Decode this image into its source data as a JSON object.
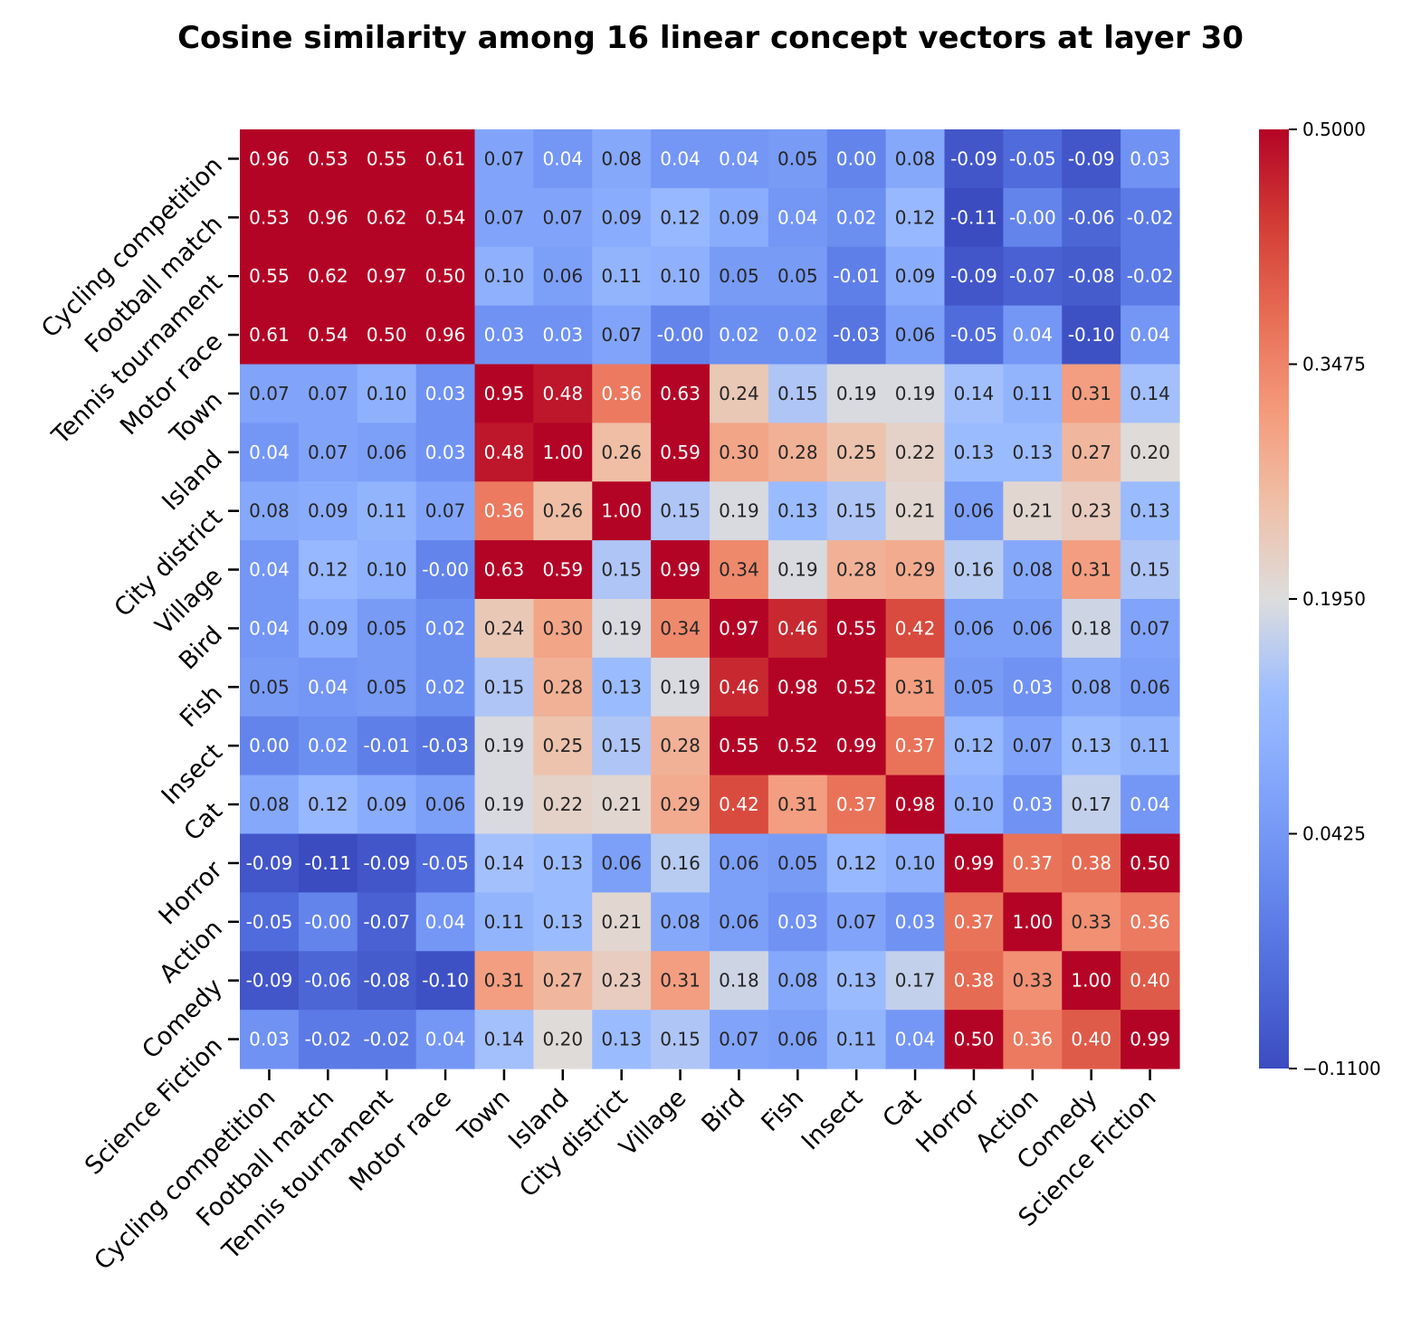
{
  "chart_data": {
    "type": "heatmap",
    "title": "Cosine similarity among 16 linear concept vectors at layer 30",
    "labels": [
      "Cycling competition",
      "Football match",
      "Tennis tournament",
      "Motor race",
      "Town",
      "Island",
      "City district",
      "Village",
      "Bird",
      "Fish",
      "Insect",
      "Cat",
      "Horror",
      "Action",
      "Comedy",
      "Science Fiction"
    ],
    "matrix": [
      [
        "0.96",
        "0.53",
        "0.55",
        "0.61",
        "0.07",
        "0.04",
        "0.08",
        "0.04",
        "0.04",
        "0.05",
        "0.00",
        "0.08",
        "-0.09",
        "-0.05",
        "-0.09",
        "0.03"
      ],
      [
        "0.53",
        "0.96",
        "0.62",
        "0.54",
        "0.07",
        "0.07",
        "0.09",
        "0.12",
        "0.09",
        "0.04",
        "0.02",
        "0.12",
        "-0.11",
        "-0.00",
        "-0.06",
        "-0.02"
      ],
      [
        "0.55",
        "0.62",
        "0.97",
        "0.50",
        "0.10",
        "0.06",
        "0.11",
        "0.10",
        "0.05",
        "0.05",
        "-0.01",
        "0.09",
        "-0.09",
        "-0.07",
        "-0.08",
        "-0.02"
      ],
      [
        "0.61",
        "0.54",
        "0.50",
        "0.96",
        "0.03",
        "0.03",
        "0.07",
        "-0.00",
        "0.02",
        "0.02",
        "-0.03",
        "0.06",
        "-0.05",
        "0.04",
        "-0.10",
        "0.04"
      ],
      [
        "0.07",
        "0.07",
        "0.10",
        "0.03",
        "0.95",
        "0.48",
        "0.36",
        "0.63",
        "0.24",
        "0.15",
        "0.19",
        "0.19",
        "0.14",
        "0.11",
        "0.31",
        "0.14"
      ],
      [
        "0.04",
        "0.07",
        "0.06",
        "0.03",
        "0.48",
        "1.00",
        "0.26",
        "0.59",
        "0.30",
        "0.28",
        "0.25",
        "0.22",
        "0.13",
        "0.13",
        "0.27",
        "0.20"
      ],
      [
        "0.08",
        "0.09",
        "0.11",
        "0.07",
        "0.36",
        "0.26",
        "1.00",
        "0.15",
        "0.19",
        "0.13",
        "0.15",
        "0.21",
        "0.06",
        "0.21",
        "0.23",
        "0.13"
      ],
      [
        "0.04",
        "0.12",
        "0.10",
        "-0.00",
        "0.63",
        "0.59",
        "0.15",
        "0.99",
        "0.34",
        "0.19",
        "0.28",
        "0.29",
        "0.16",
        "0.08",
        "0.31",
        "0.15"
      ],
      [
        "0.04",
        "0.09",
        "0.05",
        "0.02",
        "0.24",
        "0.30",
        "0.19",
        "0.34",
        "0.97",
        "0.46",
        "0.55",
        "0.42",
        "0.06",
        "0.06",
        "0.18",
        "0.07"
      ],
      [
        "0.05",
        "0.04",
        "0.05",
        "0.02",
        "0.15",
        "0.28",
        "0.13",
        "0.19",
        "0.46",
        "0.98",
        "0.52",
        "0.31",
        "0.05",
        "0.03",
        "0.08",
        "0.06"
      ],
      [
        "0.00",
        "0.02",
        "-0.01",
        "-0.03",
        "0.19",
        "0.25",
        "0.15",
        "0.28",
        "0.55",
        "0.52",
        "0.99",
        "0.37",
        "0.12",
        "0.07",
        "0.13",
        "0.11"
      ],
      [
        "0.08",
        "0.12",
        "0.09",
        "0.06",
        "0.19",
        "0.22",
        "0.21",
        "0.29",
        "0.42",
        "0.31",
        "0.37",
        "0.98",
        "0.10",
        "0.03",
        "0.17",
        "0.04"
      ],
      [
        "-0.09",
        "-0.11",
        "-0.09",
        "-0.05",
        "0.14",
        "0.13",
        "0.06",
        "0.16",
        "0.06",
        "0.05",
        "0.12",
        "0.10",
        "0.99",
        "0.37",
        "0.38",
        "0.50"
      ],
      [
        "-0.05",
        "-0.00",
        "-0.07",
        "0.04",
        "0.11",
        "0.13",
        "0.21",
        "0.08",
        "0.06",
        "0.03",
        "0.07",
        "0.03",
        "0.37",
        "1.00",
        "0.33",
        "0.36"
      ],
      [
        "-0.09",
        "-0.06",
        "-0.08",
        "-0.10",
        "0.31",
        "0.27",
        "0.23",
        "0.31",
        "0.18",
        "0.08",
        "0.13",
        "0.17",
        "0.38",
        "0.33",
        "1.00",
        "0.40"
      ],
      [
        "0.03",
        "-0.02",
        "-0.02",
        "0.04",
        "0.14",
        "0.20",
        "0.13",
        "0.15",
        "0.07",
        "0.06",
        "0.11",
        "0.04",
        "0.50",
        "0.36",
        "0.40",
        "0.99"
      ]
    ],
    "vmin": -0.11,
    "vmax": 0.5,
    "colormap": "coolwarm",
    "colorbar_ticks": [
      "0.5000",
      "0.3475",
      "0.1950",
      "0.0425",
      "−0.1100"
    ],
    "colorbar_tick_values": [
      0.5,
      0.3475,
      0.195,
      0.0425,
      -0.11
    ]
  }
}
